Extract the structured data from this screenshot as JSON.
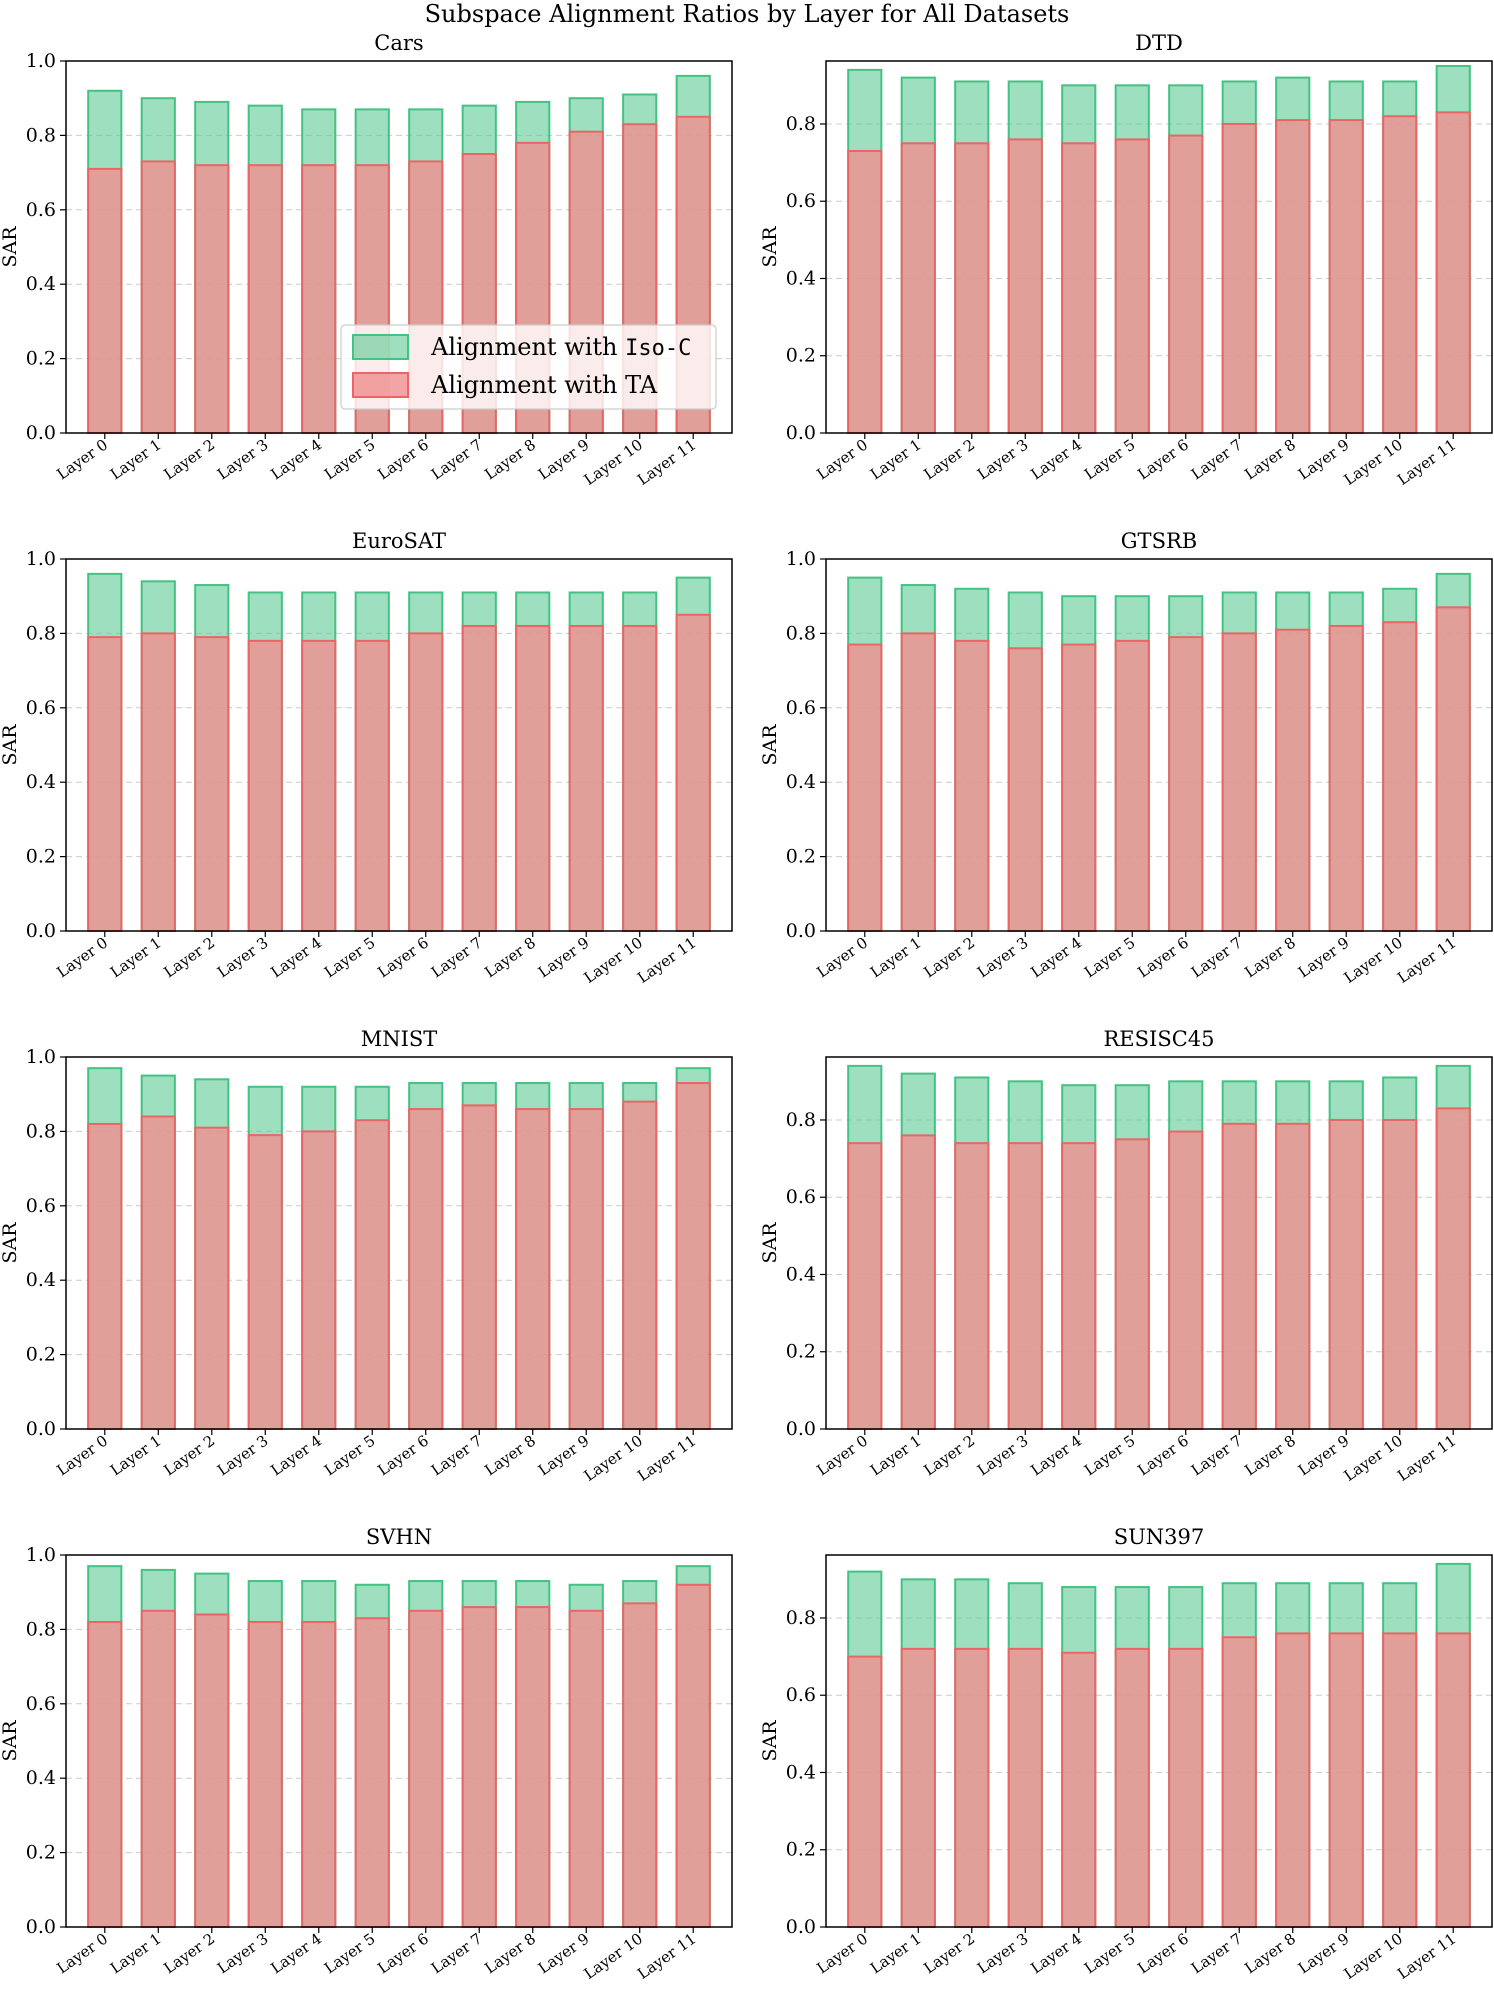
{
  "figure": {
    "title": "Subspace Alignment Ratios by Layer for All Datasets"
  },
  "legend": {
    "location": "center",
    "entries": [
      {
        "prefix": "Alignment with ",
        "code": "Iso-C",
        "color": "#5ec994",
        "edge": "#42c283"
      },
      {
        "prefix": "Alignment with TA",
        "code": "",
        "color": "#f08e8e",
        "edge": "#e86666"
      }
    ]
  },
  "chart_data": [
    {
      "type": "bar",
      "title": "Cars",
      "ylabel": "SAR",
      "xlabel": "",
      "ylim": [
        0,
        1.0
      ],
      "yticks": [
        "0.0",
        "0.2",
        "0.4",
        "0.6",
        "0.8",
        "1.0"
      ],
      "grid": "y-dashed",
      "legend": true,
      "categories": [
        "Layer 0",
        "Layer 1",
        "Layer 2",
        "Layer 3",
        "Layer 4",
        "Layer 5",
        "Layer 6",
        "Layer 7",
        "Layer 8",
        "Layer 9",
        "Layer 10",
        "Layer 11"
      ],
      "series": [
        {
          "name": "Alignment with Iso-C",
          "values": [
            0.92,
            0.9,
            0.89,
            0.88,
            0.87,
            0.87,
            0.87,
            0.88,
            0.89,
            0.9,
            0.91,
            0.96
          ]
        },
        {
          "name": "Alignment with TA",
          "values": [
            0.71,
            0.73,
            0.72,
            0.72,
            0.72,
            0.72,
            0.73,
            0.75,
            0.78,
            0.81,
            0.83,
            0.85
          ]
        }
      ]
    },
    {
      "type": "bar",
      "title": "DTD",
      "ylabel": "SAR",
      "xlabel": "",
      "ylim": [
        0,
        0.963
      ],
      "yticks": [
        "0.0",
        "0.2",
        "0.4",
        "0.6",
        "0.8"
      ],
      "grid": "y-dashed",
      "legend": false,
      "categories": [
        "Layer 0",
        "Layer 1",
        "Layer 2",
        "Layer 3",
        "Layer 4",
        "Layer 5",
        "Layer 6",
        "Layer 7",
        "Layer 8",
        "Layer 9",
        "Layer 10",
        "Layer 11"
      ],
      "series": [
        {
          "name": "Alignment with Iso-C",
          "values": [
            0.94,
            0.92,
            0.91,
            0.91,
            0.9,
            0.9,
            0.9,
            0.91,
            0.92,
            0.91,
            0.91,
            0.95
          ]
        },
        {
          "name": "Alignment with TA",
          "values": [
            0.73,
            0.75,
            0.75,
            0.76,
            0.75,
            0.76,
            0.77,
            0.8,
            0.81,
            0.81,
            0.82,
            0.83
          ]
        }
      ]
    },
    {
      "type": "bar",
      "title": "EuroSAT",
      "ylabel": "SAR",
      "xlabel": "",
      "ylim": [
        0,
        1.0
      ],
      "yticks": [
        "0.0",
        "0.2",
        "0.4",
        "0.6",
        "0.8",
        "1.0"
      ],
      "grid": "y-dashed",
      "legend": false,
      "categories": [
        "Layer 0",
        "Layer 1",
        "Layer 2",
        "Layer 3",
        "Layer 4",
        "Layer 5",
        "Layer 6",
        "Layer 7",
        "Layer 8",
        "Layer 9",
        "Layer 10",
        "Layer 11"
      ],
      "series": [
        {
          "name": "Alignment with Iso-C",
          "values": [
            0.96,
            0.94,
            0.93,
            0.91,
            0.91,
            0.91,
            0.91,
            0.91,
            0.91,
            0.91,
            0.91,
            0.95
          ]
        },
        {
          "name": "Alignment with TA",
          "values": [
            0.79,
            0.8,
            0.79,
            0.78,
            0.78,
            0.78,
            0.8,
            0.82,
            0.82,
            0.82,
            0.82,
            0.85
          ]
        }
      ]
    },
    {
      "type": "bar",
      "title": "GTSRB",
      "ylabel": "SAR",
      "xlabel": "",
      "ylim": [
        0,
        1.0
      ],
      "yticks": [
        "0.0",
        "0.2",
        "0.4",
        "0.6",
        "0.8",
        "1.0"
      ],
      "grid": "y-dashed",
      "legend": false,
      "categories": [
        "Layer 0",
        "Layer 1",
        "Layer 2",
        "Layer 3",
        "Layer 4",
        "Layer 5",
        "Layer 6",
        "Layer 7",
        "Layer 8",
        "Layer 9",
        "Layer 10",
        "Layer 11"
      ],
      "series": [
        {
          "name": "Alignment with Iso-C",
          "values": [
            0.95,
            0.93,
            0.92,
            0.91,
            0.9,
            0.9,
            0.9,
            0.91,
            0.91,
            0.91,
            0.92,
            0.96
          ]
        },
        {
          "name": "Alignment with TA",
          "values": [
            0.77,
            0.8,
            0.78,
            0.76,
            0.77,
            0.78,
            0.79,
            0.8,
            0.81,
            0.82,
            0.83,
            0.87
          ]
        }
      ]
    },
    {
      "type": "bar",
      "title": "MNIST",
      "ylabel": "SAR",
      "xlabel": "",
      "ylim": [
        0,
        1.0
      ],
      "yticks": [
        "0.0",
        "0.2",
        "0.4",
        "0.6",
        "0.8",
        "1.0"
      ],
      "grid": "y-dashed",
      "legend": false,
      "categories": [
        "Layer 0",
        "Layer 1",
        "Layer 2",
        "Layer 3",
        "Layer 4",
        "Layer 5",
        "Layer 6",
        "Layer 7",
        "Layer 8",
        "Layer 9",
        "Layer 10",
        "Layer 11"
      ],
      "series": [
        {
          "name": "Alignment with Iso-C",
          "values": [
            0.97,
            0.95,
            0.94,
            0.92,
            0.92,
            0.92,
            0.93,
            0.93,
            0.93,
            0.93,
            0.93,
            0.97
          ]
        },
        {
          "name": "Alignment with TA",
          "values": [
            0.82,
            0.84,
            0.81,
            0.79,
            0.8,
            0.83,
            0.86,
            0.87,
            0.86,
            0.86,
            0.88,
            0.93
          ]
        }
      ]
    },
    {
      "type": "bar",
      "title": "RESISC45",
      "ylabel": "SAR",
      "xlabel": "",
      "ylim": [
        0,
        0.963
      ],
      "yticks": [
        "0.0",
        "0.2",
        "0.4",
        "0.6",
        "0.8"
      ],
      "grid": "y-dashed",
      "legend": false,
      "categories": [
        "Layer 0",
        "Layer 1",
        "Layer 2",
        "Layer 3",
        "Layer 4",
        "Layer 5",
        "Layer 6",
        "Layer 7",
        "Layer 8",
        "Layer 9",
        "Layer 10",
        "Layer 11"
      ],
      "series": [
        {
          "name": "Alignment with Iso-C",
          "values": [
            0.94,
            0.92,
            0.91,
            0.9,
            0.89,
            0.89,
            0.9,
            0.9,
            0.9,
            0.9,
            0.91,
            0.94
          ]
        },
        {
          "name": "Alignment with TA",
          "values": [
            0.74,
            0.76,
            0.74,
            0.74,
            0.74,
            0.75,
            0.77,
            0.79,
            0.79,
            0.8,
            0.8,
            0.83
          ]
        }
      ]
    },
    {
      "type": "bar",
      "title": "SVHN",
      "ylabel": "SAR",
      "xlabel": "",
      "ylim": [
        0,
        1.0
      ],
      "yticks": [
        "0.0",
        "0.2",
        "0.4",
        "0.6",
        "0.8",
        "1.0"
      ],
      "grid": "y-dashed",
      "legend": false,
      "categories": [
        "Layer 0",
        "Layer 1",
        "Layer 2",
        "Layer 3",
        "Layer 4",
        "Layer 5",
        "Layer 6",
        "Layer 7",
        "Layer 8",
        "Layer 9",
        "Layer 10",
        "Layer 11"
      ],
      "series": [
        {
          "name": "Alignment with Iso-C",
          "values": [
            0.97,
            0.96,
            0.95,
            0.93,
            0.93,
            0.92,
            0.93,
            0.93,
            0.93,
            0.92,
            0.93,
            0.97
          ]
        },
        {
          "name": "Alignment with TA",
          "values": [
            0.82,
            0.85,
            0.84,
            0.82,
            0.82,
            0.83,
            0.85,
            0.86,
            0.86,
            0.85,
            0.87,
            0.92
          ]
        }
      ]
    },
    {
      "type": "bar",
      "title": "SUN397",
      "ylabel": "SAR",
      "xlabel": "",
      "ylim": [
        0,
        0.963
      ],
      "yticks": [
        "0.0",
        "0.2",
        "0.4",
        "0.6",
        "0.8"
      ],
      "grid": "y-dashed",
      "legend": false,
      "categories": [
        "Layer 0",
        "Layer 1",
        "Layer 2",
        "Layer 3",
        "Layer 4",
        "Layer 5",
        "Layer 6",
        "Layer 7",
        "Layer 8",
        "Layer 9",
        "Layer 10",
        "Layer 11"
      ],
      "series": [
        {
          "name": "Alignment with Iso-C",
          "values": [
            0.92,
            0.9,
            0.9,
            0.89,
            0.88,
            0.88,
            0.88,
            0.89,
            0.89,
            0.89,
            0.89,
            0.94
          ]
        },
        {
          "name": "Alignment with TA",
          "values": [
            0.7,
            0.72,
            0.72,
            0.72,
            0.71,
            0.72,
            0.72,
            0.75,
            0.76,
            0.76,
            0.76,
            0.76
          ]
        }
      ]
    }
  ]
}
